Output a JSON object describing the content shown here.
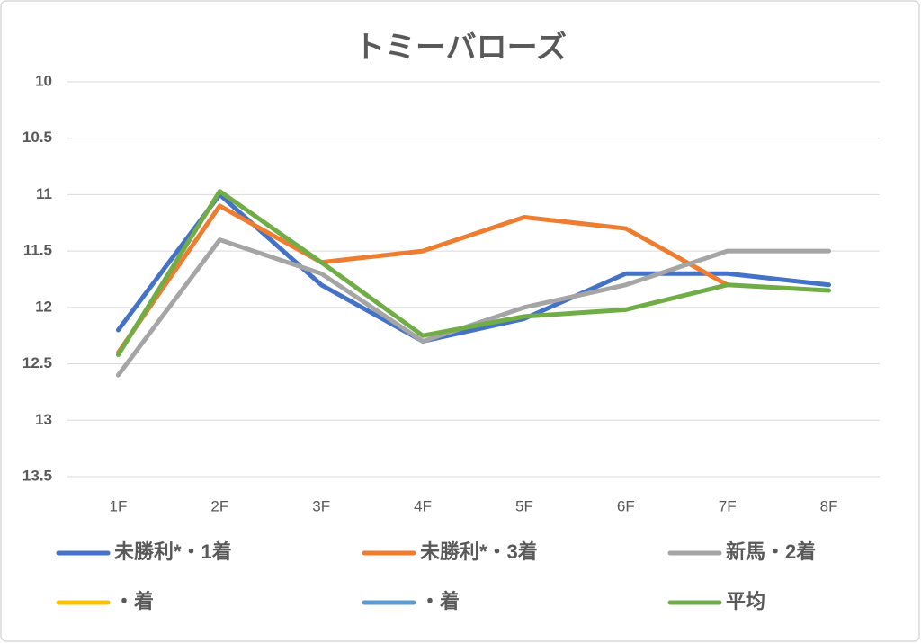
{
  "chart_data": {
    "type": "line",
    "title": "トミーバローズ",
    "categories": [
      "1F",
      "2F",
      "3F",
      "4F",
      "5F",
      "6F",
      "7F",
      "8F"
    ],
    "series": [
      {
        "name": "未勝利*・1着",
        "color": "#4472c4",
        "values": [
          12.2,
          11.0,
          11.8,
          12.3,
          12.1,
          11.7,
          11.7,
          11.8
        ]
      },
      {
        "name": "未勝利*・3着",
        "color": "#ed7d31",
        "values": [
          12.4,
          11.1,
          11.6,
          11.5,
          11.2,
          11.3,
          11.8,
          null
        ]
      },
      {
        "name": "新馬・2着",
        "color": "#a5a5a5",
        "values": [
          12.6,
          11.4,
          11.7,
          12.3,
          12.0,
          11.8,
          11.5,
          11.5
        ]
      },
      {
        "name": "・着",
        "color": "#ffc000",
        "values": [
          null,
          null,
          null,
          null,
          null,
          null,
          null,
          null
        ]
      },
      {
        "name": "・着",
        "color": "#5b9bd5",
        "values": [
          null,
          null,
          null,
          null,
          null,
          null,
          null,
          null
        ]
      },
      {
        "name": "平均",
        "color": "#70ad47",
        "values": [
          12.42,
          10.97,
          11.6,
          12.25,
          12.08,
          12.02,
          11.8,
          11.85
        ]
      }
    ],
    "ylim": [
      10,
      13.5
    ],
    "yticks": [
      10,
      10.5,
      11,
      11.5,
      12,
      12.5,
      13,
      13.5
    ],
    "reversed": true,
    "grid": true,
    "legend": "bottom"
  }
}
